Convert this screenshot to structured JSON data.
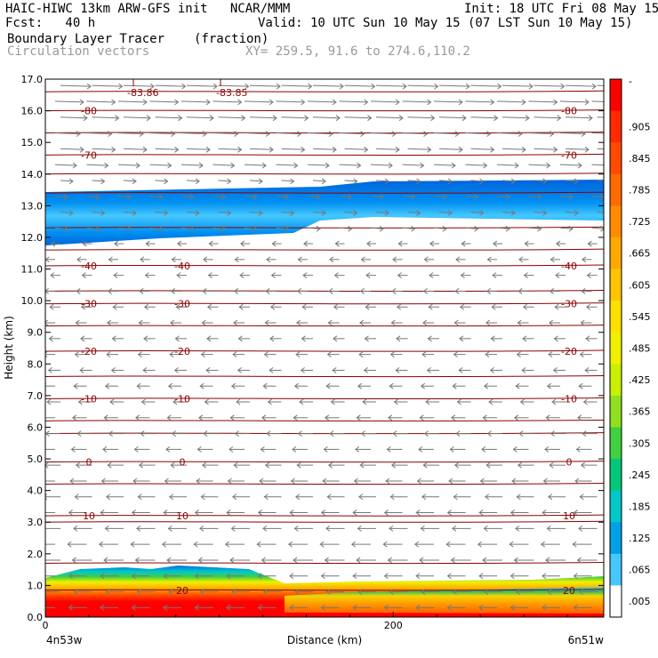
{
  "header": {
    "model_line": "HAIC-HIWC 13km ARW-GFS init   NCAR/MMM",
    "init": "Init: 18 UTC Fri 08 May 15",
    "fcst_label": "Fcst:   40 h",
    "valid": "Valid: 10 UTC Sun 10 May 15 (07 LST Sun 10 May 15)",
    "field": "Boundary Layer Tracer",
    "units": "(fraction)",
    "overlay": "Circulation vectors",
    "xy": "XY= 259.5, 91.6 to 274.6,110.2"
  },
  "chart_data": {
    "type": "heatmap",
    "xlabel": "Distance (km)",
    "ylabel": "Height (km)",
    "xlim": [
      0,
      321
    ],
    "ylim": [
      0,
      17
    ],
    "x_tick_values": [
      0,
      200
    ],
    "x_tick_labels": [
      "0",
      "200"
    ],
    "x_endpoints": [
      "4n53w",
      "6n51w"
    ],
    "y_ticks": [
      "0.0",
      "1.0",
      "2.0",
      "3.0",
      "4.0",
      "5.0",
      "6.0",
      "7.0",
      "8.0",
      "9.0",
      "10.0",
      "11.0",
      "12.0",
      "13.0",
      "14.0",
      "15.0",
      "16.0",
      "17.0"
    ],
    "colorbar": {
      "labels": [
        "-",
        ".905",
        ".845",
        ".785",
        ".725",
        ".665",
        ".605",
        ".545",
        ".485",
        ".425",
        ".365",
        ".305",
        ".245",
        ".185",
        ".125",
        ".065",
        ".005"
      ],
      "colors": [
        "#ff0000",
        "#ff2a00",
        "#ff4a00",
        "#ff6a00",
        "#ff8c00",
        "#ffa800",
        "#ffc400",
        "#ffe000",
        "#f0f000",
        "#c8f000",
        "#90e020",
        "#40d040",
        "#00c878",
        "#00c8c8",
        "#00a0e6",
        "#46c8ff",
        "#ffffff"
      ]
    },
    "temperature_contours": [
      {
        "label": "-80",
        "height_km": 16.0
      },
      {
        "label": "-70",
        "height_km": 14.6
      },
      {
        "label": "-40",
        "height_km": 11.1
      },
      {
        "label": "-30",
        "height_km": 9.9
      },
      {
        "label": "-20",
        "height_km": 8.4
      },
      {
        "label": "-10",
        "height_km": 6.9
      },
      {
        "label": "0",
        "height_km": 4.9
      },
      {
        "label": "10",
        "height_km": 3.2
      },
      {
        "label": "20",
        "height_km": 0.85
      }
    ],
    "pressure_labels": [
      "-83.86",
      "-83.85"
    ],
    "tracer_layers": [
      {
        "name": "upper",
        "base_km": 12.3,
        "top_km": 13.6,
        "max": 0.125
      },
      {
        "name": "boundary",
        "base_km": 0.0,
        "top_km": 1.4,
        "max": 0.905
      }
    ],
    "grid": false,
    "legend_position": "right"
  }
}
